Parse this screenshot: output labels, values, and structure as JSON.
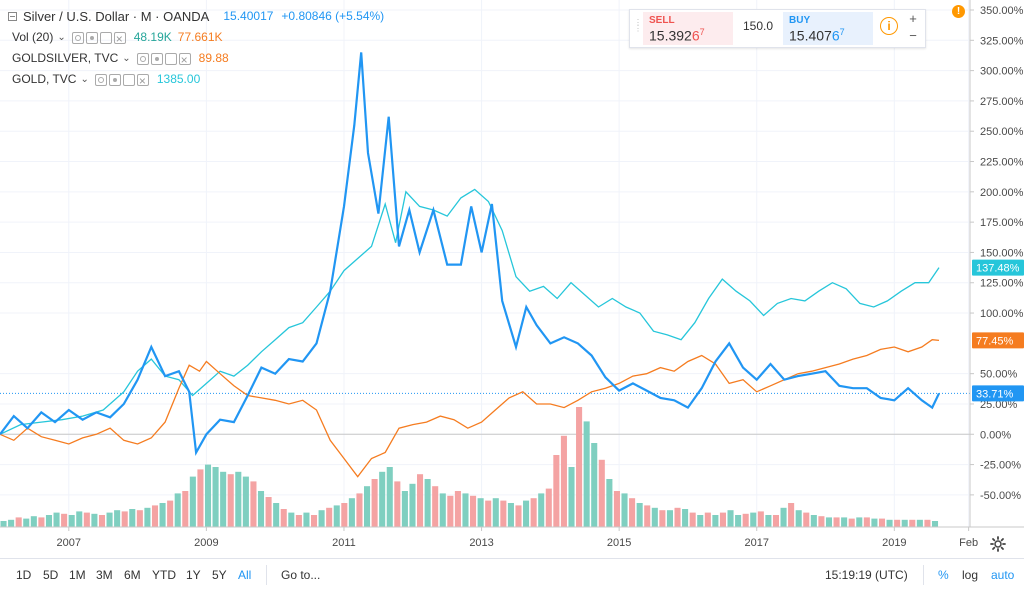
{
  "legend": {
    "symbol": "Silver / U.S. Dollar · M · OANDA",
    "price": "15.40017",
    "change": "+0.80846 (+5.54%)",
    "vol_name": "Vol (20)",
    "vol_value1": "48.19K",
    "vol_value2": "77.661K",
    "goldsilver_name": "GOLDSILVER, TVC",
    "goldsilver_value": "89.88",
    "gold_name": "GOLD, TVC",
    "gold_value": "1385.00"
  },
  "trade": {
    "sell_label": "SELL",
    "sell_price": "15.392",
    "sell_pip": "6",
    "sell_sup": "7",
    "qty": "150.0",
    "buy_label": "BUY",
    "buy_price": "15.407",
    "buy_pip": "6",
    "buy_sup": "7",
    "info_glyph": "i",
    "plus": "+",
    "minus": "−"
  },
  "alert_glyph": "!",
  "bottom": {
    "timeframes": [
      "1D",
      "5D",
      "1M",
      "3M",
      "6M",
      "YTD",
      "1Y",
      "5Y",
      "All"
    ],
    "active": "All",
    "goto": "Go to...",
    "time": "15:19:19 (UTC)",
    "percent": "%",
    "log": "log",
    "auto": "auto"
  },
  "colors": {
    "silver": "#2196f3",
    "gold": "#26c6da",
    "goldsilver": "#f57c20",
    "vol_up": "#7fcfc0",
    "vol_down": "#f4a3a3",
    "accent": "#2196f3"
  },
  "chart_data": {
    "type": "line",
    "yaxis": {
      "min": -60,
      "max": 350,
      "ticks": [
        350,
        325,
        300,
        275,
        250,
        225,
        200,
        175,
        150,
        125,
        100,
        50,
        25,
        0,
        -25,
        -50
      ],
      "tick_labels": [
        "350.00%",
        "325.00%",
        "300.00%",
        "275.00%",
        "250.00%",
        "225.00%",
        "200.00%",
        "175.00%",
        "150.00%",
        "125.00%",
        "100.00%",
        "50.00%",
        "25.00%",
        "0.00%",
        "-25.00%",
        "-50.00%"
      ]
    },
    "xaxis": {
      "start": 2006.0,
      "end": 2020.1,
      "ticks": [
        2007,
        2009,
        2011,
        2013,
        2015,
        2017,
        2019,
        2020.08
      ],
      "tick_labels": [
        "2007",
        "2009",
        "2011",
        "2013",
        "2015",
        "2017",
        "2019",
        "Feb"
      ]
    },
    "markers": [
      {
        "name": "GOLD, TVC",
        "value": 137.48,
        "label": "137.48%",
        "color": "#26c6da"
      },
      {
        "name": "GOLDSILVER, TVC",
        "value": 77.45,
        "label": "77.45%",
        "color": "#f57c20"
      },
      {
        "name": "Silver / U.S. Dollar",
        "value": 33.71,
        "label": "33.71%",
        "color": "#2196f3"
      }
    ],
    "series": [
      {
        "name": "Silver / U.S. Dollar",
        "color": "#2196f3",
        "points": [
          [
            2006.0,
            0
          ],
          [
            2006.2,
            15
          ],
          [
            2006.4,
            5
          ],
          [
            2006.6,
            18
          ],
          [
            2006.8,
            10
          ],
          [
            2007.0,
            20
          ],
          [
            2007.2,
            12
          ],
          [
            2007.4,
            18
          ],
          [
            2007.6,
            14
          ],
          [
            2007.8,
            25
          ],
          [
            2008.0,
            45
          ],
          [
            2008.2,
            72
          ],
          [
            2008.4,
            48
          ],
          [
            2008.6,
            52
          ],
          [
            2008.75,
            35
          ],
          [
            2008.85,
            -15
          ],
          [
            2009.0,
            0
          ],
          [
            2009.2,
            12
          ],
          [
            2009.4,
            10
          ],
          [
            2009.6,
            32
          ],
          [
            2009.8,
            55
          ],
          [
            2010.0,
            50
          ],
          [
            2010.2,
            62
          ],
          [
            2010.4,
            60
          ],
          [
            2010.6,
            75
          ],
          [
            2010.8,
            118
          ],
          [
            2011.0,
            188
          ],
          [
            2011.15,
            255
          ],
          [
            2011.25,
            315
          ],
          [
            2011.35,
            232
          ],
          [
            2011.5,
            182
          ],
          [
            2011.65,
            262
          ],
          [
            2011.8,
            155
          ],
          [
            2011.95,
            185
          ],
          [
            2012.1,
            150
          ],
          [
            2012.3,
            185
          ],
          [
            2012.5,
            140
          ],
          [
            2012.7,
            140
          ],
          [
            2012.85,
            188
          ],
          [
            2013.0,
            150
          ],
          [
            2013.15,
            190
          ],
          [
            2013.3,
            110
          ],
          [
            2013.5,
            72
          ],
          [
            2013.65,
            105
          ],
          [
            2013.8,
            90
          ],
          [
            2014.0,
            75
          ],
          [
            2014.2,
            80
          ],
          [
            2014.4,
            75
          ],
          [
            2014.6,
            65
          ],
          [
            2014.8,
            47
          ],
          [
            2015.0,
            36
          ],
          [
            2015.2,
            42
          ],
          [
            2015.4,
            36
          ],
          [
            2015.6,
            30
          ],
          [
            2015.8,
            28
          ],
          [
            2016.0,
            22
          ],
          [
            2016.2,
            38
          ],
          [
            2016.4,
            60
          ],
          [
            2016.6,
            75
          ],
          [
            2016.8,
            55
          ],
          [
            2017.0,
            45
          ],
          [
            2017.2,
            58
          ],
          [
            2017.4,
            45
          ],
          [
            2017.6,
            48
          ],
          [
            2017.8,
            50
          ],
          [
            2018.0,
            52
          ],
          [
            2018.2,
            40
          ],
          [
            2018.4,
            38
          ],
          [
            2018.6,
            38
          ],
          [
            2018.8,
            30
          ],
          [
            2019.0,
            28
          ],
          [
            2019.2,
            38
          ],
          [
            2019.4,
            28
          ],
          [
            2019.55,
            22
          ],
          [
            2019.65,
            33.71
          ]
        ]
      },
      {
        "name": "GOLD, TVC",
        "color": "#26c6da",
        "points": [
          [
            2006.0,
            0
          ],
          [
            2006.3,
            8
          ],
          [
            2006.6,
            10
          ],
          [
            2006.9,
            12
          ],
          [
            2007.2,
            15
          ],
          [
            2007.5,
            20
          ],
          [
            2007.8,
            35
          ],
          [
            2008.0,
            52
          ],
          [
            2008.2,
            62
          ],
          [
            2008.4,
            48
          ],
          [
            2008.6,
            45
          ],
          [
            2008.8,
            32
          ],
          [
            2009.0,
            42
          ],
          [
            2009.2,
            52
          ],
          [
            2009.4,
            48
          ],
          [
            2009.6,
            57
          ],
          [
            2009.8,
            68
          ],
          [
            2010.0,
            78
          ],
          [
            2010.2,
            88
          ],
          [
            2010.4,
            92
          ],
          [
            2010.6,
            105
          ],
          [
            2010.8,
            118
          ],
          [
            2011.0,
            135
          ],
          [
            2011.2,
            145
          ],
          [
            2011.4,
            155
          ],
          [
            2011.6,
            190
          ],
          [
            2011.75,
            158
          ],
          [
            2011.9,
            200
          ],
          [
            2012.1,
            188
          ],
          [
            2012.3,
            185
          ],
          [
            2012.5,
            180
          ],
          [
            2012.7,
            195
          ],
          [
            2012.9,
            202
          ],
          [
            2013.1,
            192
          ],
          [
            2013.3,
            168
          ],
          [
            2013.5,
            130
          ],
          [
            2013.7,
            118
          ],
          [
            2013.9,
            122
          ],
          [
            2014.1,
            112
          ],
          [
            2014.3,
            125
          ],
          [
            2014.5,
            115
          ],
          [
            2014.7,
            105
          ],
          [
            2014.9,
            112
          ],
          [
            2015.1,
            105
          ],
          [
            2015.3,
            100
          ],
          [
            2015.5,
            85
          ],
          [
            2015.7,
            82
          ],
          [
            2015.9,
            78
          ],
          [
            2016.1,
            92
          ],
          [
            2016.3,
            112
          ],
          [
            2016.5,
            128
          ],
          [
            2016.7,
            118
          ],
          [
            2016.9,
            110
          ],
          [
            2017.1,
            98
          ],
          [
            2017.3,
            108
          ],
          [
            2017.5,
            112
          ],
          [
            2017.7,
            110
          ],
          [
            2017.9,
            118
          ],
          [
            2018.1,
            125
          ],
          [
            2018.3,
            120
          ],
          [
            2018.5,
            108
          ],
          [
            2018.7,
            105
          ],
          [
            2018.9,
            110
          ],
          [
            2019.1,
            118
          ],
          [
            2019.3,
            125
          ],
          [
            2019.5,
            125
          ],
          [
            2019.65,
            137.48
          ]
        ]
      },
      {
        "name": "GOLDSILVER, TVC",
        "color": "#f57c20",
        "points": [
          [
            2006.0,
            0
          ],
          [
            2006.2,
            -5
          ],
          [
            2006.4,
            5
          ],
          [
            2006.6,
            -2
          ],
          [
            2006.8,
            -5
          ],
          [
            2007.0,
            -8
          ],
          [
            2007.2,
            -3
          ],
          [
            2007.4,
            0
          ],
          [
            2007.6,
            5
          ],
          [
            2007.8,
            -5
          ],
          [
            2008.0,
            -8
          ],
          [
            2008.2,
            -3
          ],
          [
            2008.4,
            10
          ],
          [
            2008.6,
            38
          ],
          [
            2008.75,
            57
          ],
          [
            2008.9,
            52
          ],
          [
            2009.0,
            60
          ],
          [
            2009.2,
            50
          ],
          [
            2009.4,
            40
          ],
          [
            2009.6,
            32
          ],
          [
            2009.8,
            30
          ],
          [
            2010.0,
            28
          ],
          [
            2010.2,
            25
          ],
          [
            2010.4,
            28
          ],
          [
            2010.6,
            20
          ],
          [
            2010.8,
            -5
          ],
          [
            2011.0,
            -20
          ],
          [
            2011.2,
            -35
          ],
          [
            2011.4,
            -20
          ],
          [
            2011.6,
            -15
          ],
          [
            2011.8,
            5
          ],
          [
            2012.0,
            8
          ],
          [
            2012.2,
            10
          ],
          [
            2012.4,
            15
          ],
          [
            2012.6,
            12
          ],
          [
            2012.8,
            5
          ],
          [
            2013.0,
            10
          ],
          [
            2013.2,
            20
          ],
          [
            2013.4,
            30
          ],
          [
            2013.6,
            35
          ],
          [
            2013.8,
            25
          ],
          [
            2014.0,
            25
          ],
          [
            2014.2,
            22
          ],
          [
            2014.4,
            28
          ],
          [
            2014.6,
            35
          ],
          [
            2014.8,
            38
          ],
          [
            2015.0,
            42
          ],
          [
            2015.2,
            48
          ],
          [
            2015.4,
            50
          ],
          [
            2015.6,
            55
          ],
          [
            2015.8,
            52
          ],
          [
            2016.0,
            60
          ],
          [
            2016.2,
            65
          ],
          [
            2016.4,
            58
          ],
          [
            2016.6,
            42
          ],
          [
            2016.8,
            45
          ],
          [
            2017.0,
            35
          ],
          [
            2017.2,
            40
          ],
          [
            2017.4,
            45
          ],
          [
            2017.6,
            50
          ],
          [
            2017.8,
            52
          ],
          [
            2018.0,
            55
          ],
          [
            2018.2,
            58
          ],
          [
            2018.4,
            62
          ],
          [
            2018.6,
            65
          ],
          [
            2018.8,
            70
          ],
          [
            2019.0,
            72
          ],
          [
            2019.2,
            68
          ],
          [
            2019.4,
            72
          ],
          [
            2019.55,
            78
          ],
          [
            2019.65,
            77.45
          ]
        ]
      }
    ],
    "volume": {
      "max": 100,
      "values": [
        5,
        6,
        8,
        7,
        9,
        8,
        10,
        12,
        11,
        10,
        13,
        12,
        11,
        10,
        12,
        14,
        13,
        15,
        14,
        16,
        18,
        20,
        22,
        28,
        30,
        42,
        48,
        52,
        50,
        46,
        44,
        46,
        42,
        38,
        30,
        25,
        20,
        15,
        12,
        10,
        12,
        10,
        14,
        16,
        18,
        20,
        24,
        28,
        34,
        40,
        46,
        50,
        38,
        30,
        36,
        44,
        40,
        34,
        28,
        26,
        30,
        28,
        26,
        24,
        22,
        24,
        22,
        20,
        18,
        22,
        24,
        28,
        32,
        60,
        76,
        50,
        100,
        88,
        70,
        56,
        40,
        30,
        28,
        24,
        20,
        18,
        16,
        14,
        14,
        16,
        15,
        12,
        10,
        12,
        10,
        12,
        14,
        10,
        11,
        12,
        13,
        10,
        10,
        16,
        20,
        14,
        12,
        10,
        9,
        8,
        8,
        8,
        7,
        8,
        8,
        7,
        7,
        6,
        6,
        6,
        6,
        6,
        6,
        5
      ],
      "colors": [
        "up",
        "up",
        "down",
        "up",
        "up",
        "down",
        "up",
        "up",
        "down",
        "up",
        "up",
        "down",
        "up",
        "down",
        "up",
        "up",
        "down",
        "up",
        "down",
        "up",
        "down",
        "up",
        "down",
        "up",
        "down",
        "up",
        "down",
        "up",
        "up",
        "up",
        "down",
        "up",
        "up",
        "down",
        "up",
        "down",
        "up",
        "down",
        "up",
        "down",
        "up",
        "down",
        "up",
        "down",
        "up",
        "down",
        "up",
        "down",
        "up",
        "down",
        "up",
        "up",
        "down",
        "up",
        "up",
        "down",
        "up",
        "down",
        "up",
        "down",
        "down",
        "up",
        "down",
        "up",
        "down",
        "up",
        "down",
        "up",
        "down",
        "up",
        "down",
        "up",
        "down",
        "down",
        "down",
        "up",
        "down",
        "up",
        "up",
        "down",
        "up",
        "down",
        "up",
        "down",
        "up",
        "down",
        "up",
        "down",
        "up",
        "down",
        "up",
        "down",
        "up",
        "down",
        "up",
        "down",
        "up",
        "up",
        "down",
        "up",
        "down",
        "up",
        "down",
        "up",
        "down",
        "up",
        "down",
        "up",
        "down",
        "up",
        "down",
        "up",
        "down",
        "up",
        "down",
        "up",
        "down",
        "up",
        "down",
        "up",
        "down",
        "up",
        "down",
        "up"
      ]
    }
  }
}
